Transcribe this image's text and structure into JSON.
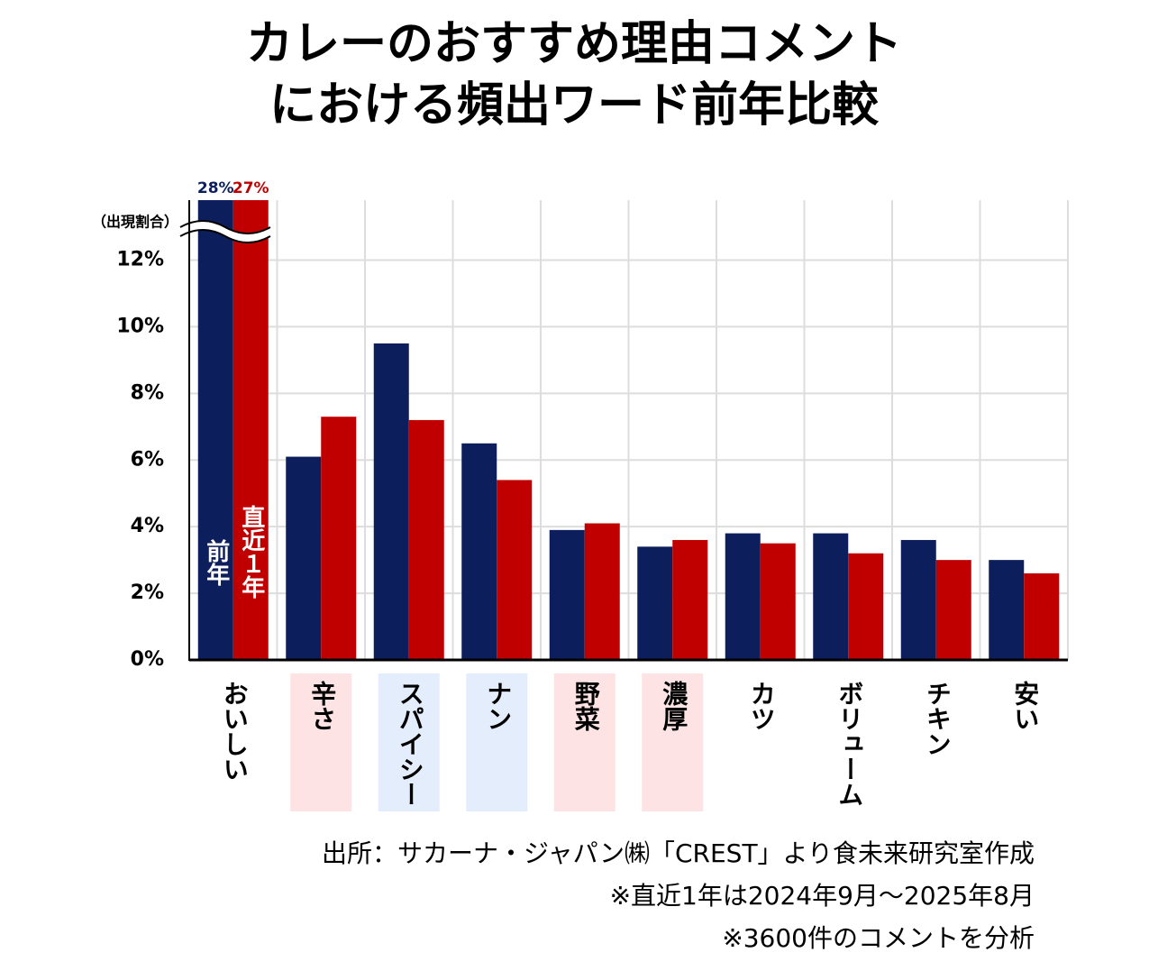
{
  "chart_data": {
    "type": "bar",
    "title": "カレーのおすすめ理由コメント",
    "subtitle": "における頻出ワード前年比較",
    "y_label": "（出現割合）",
    "categories": [
      "おいしい",
      "辛さ",
      "スパイシー",
      "ナン",
      "野菜",
      "濃厚",
      "カツ",
      "ボリューム",
      "チキン",
      "安い"
    ],
    "category_backgrounds": [
      null,
      "#fde3e3",
      "#e3edfb",
      "#e3edfb",
      "#fde3e3",
      "#fde3e3",
      null,
      null,
      null,
      null
    ],
    "series": [
      {
        "name": "前年",
        "color": "#0c1f5c",
        "values": [
          28,
          6.1,
          9.5,
          6.5,
          3.9,
          3.4,
          3.8,
          3.8,
          3.6,
          3.0
        ],
        "value_labels": [
          "28%",
          null,
          null,
          null,
          null,
          null,
          null,
          null,
          null,
          null
        ]
      },
      {
        "name": "直近１年",
        "color": "#c00000",
        "values": [
          27,
          7.3,
          7.2,
          5.4,
          4.1,
          3.6,
          3.5,
          3.2,
          3.0,
          2.6
        ],
        "value_labels": [
          "27%",
          null,
          null,
          null,
          null,
          null,
          null,
          null,
          null,
          null
        ]
      }
    ],
    "ylim": [
      0,
      13.8
    ],
    "yticks": [
      {
        "value": 0,
        "label": "0%"
      },
      {
        "value": 2,
        "label": "2%"
      },
      {
        "value": 4,
        "label": "4%"
      },
      {
        "value": 6,
        "label": "6%"
      },
      {
        "value": 8,
        "label": "8%"
      },
      {
        "value": 10,
        "label": "10%"
      },
      {
        "value": 12,
        "label": "12%"
      }
    ],
    "grid": true,
    "notes": [
      "出所：サカーナ・ジャパン㈱「CREST」より食未来研究室作成",
      "※直近1年は2024年9月～2025年8月",
      "※3600件のコメントを分析"
    ]
  }
}
